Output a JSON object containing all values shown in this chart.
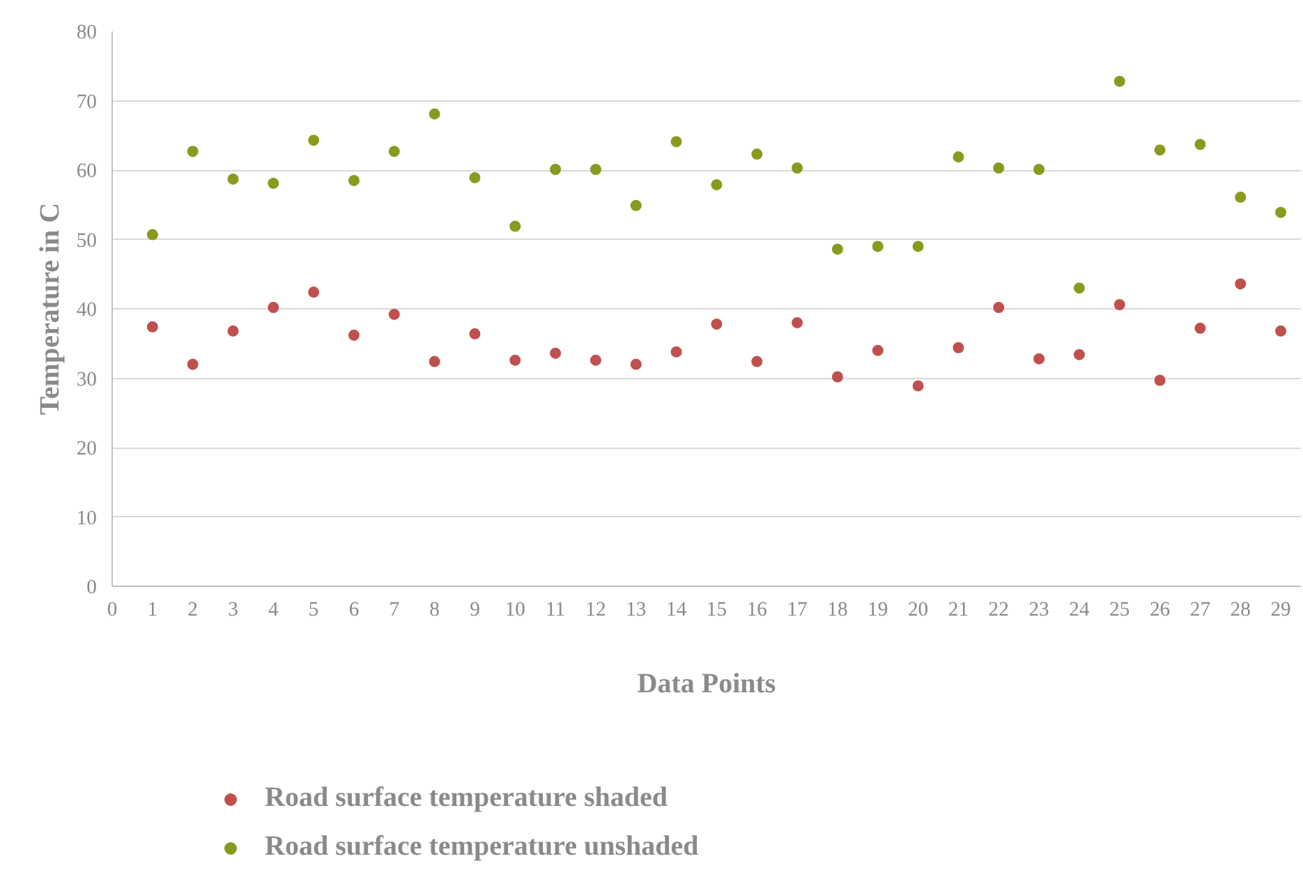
{
  "chart_data": {
    "type": "scatter",
    "xlabel": "Data Points",
    "ylabel": "Temperature in C",
    "x": [
      1,
      2,
      3,
      4,
      5,
      6,
      7,
      8,
      9,
      10,
      11,
      12,
      13,
      14,
      15,
      16,
      17,
      18,
      19,
      20,
      21,
      22,
      23,
      24,
      25,
      26,
      27,
      28,
      29
    ],
    "series": [
      {
        "name": "Road surface temperature shaded",
        "color": "#c0504d",
        "values": [
          37.4,
          32.0,
          36.8,
          40.2,
          42.4,
          36.2,
          39.2,
          32.4,
          36.4,
          32.6,
          33.6,
          32.6,
          32.0,
          33.8,
          37.8,
          32.4,
          38.0,
          30.2,
          34.0,
          28.9,
          34.4,
          40.2,
          32.8,
          33.4,
          40.6,
          29.7,
          37.2,
          43.6,
          36.8
        ]
      },
      {
        "name": "Road surface temperature unshaded",
        "color": "#8a9a1e",
        "values": [
          50.7,
          62.7,
          58.7,
          58.1,
          64.3,
          58.5,
          62.7,
          68.1,
          58.9,
          51.9,
          60.1,
          60.1,
          54.9,
          64.1,
          57.9,
          62.3,
          60.3,
          48.6,
          49.0,
          49.0,
          61.9,
          60.3,
          60.1,
          43.0,
          72.8,
          62.9,
          63.7,
          56.1,
          53.9
        ]
      }
    ],
    "xlim": [
      0,
      29.5
    ],
    "xticks": [
      0,
      1,
      2,
      3,
      4,
      5,
      6,
      7,
      8,
      9,
      10,
      11,
      12,
      13,
      14,
      15,
      16,
      17,
      18,
      19,
      20,
      21,
      22,
      23,
      24,
      25,
      26,
      27,
      28,
      29
    ],
    "ylim": [
      0,
      80
    ],
    "yticks": [
      0,
      10,
      20,
      30,
      40,
      50,
      60,
      70,
      80
    ],
    "grid": "y",
    "legend": "bottom",
    "marker": "circle"
  }
}
